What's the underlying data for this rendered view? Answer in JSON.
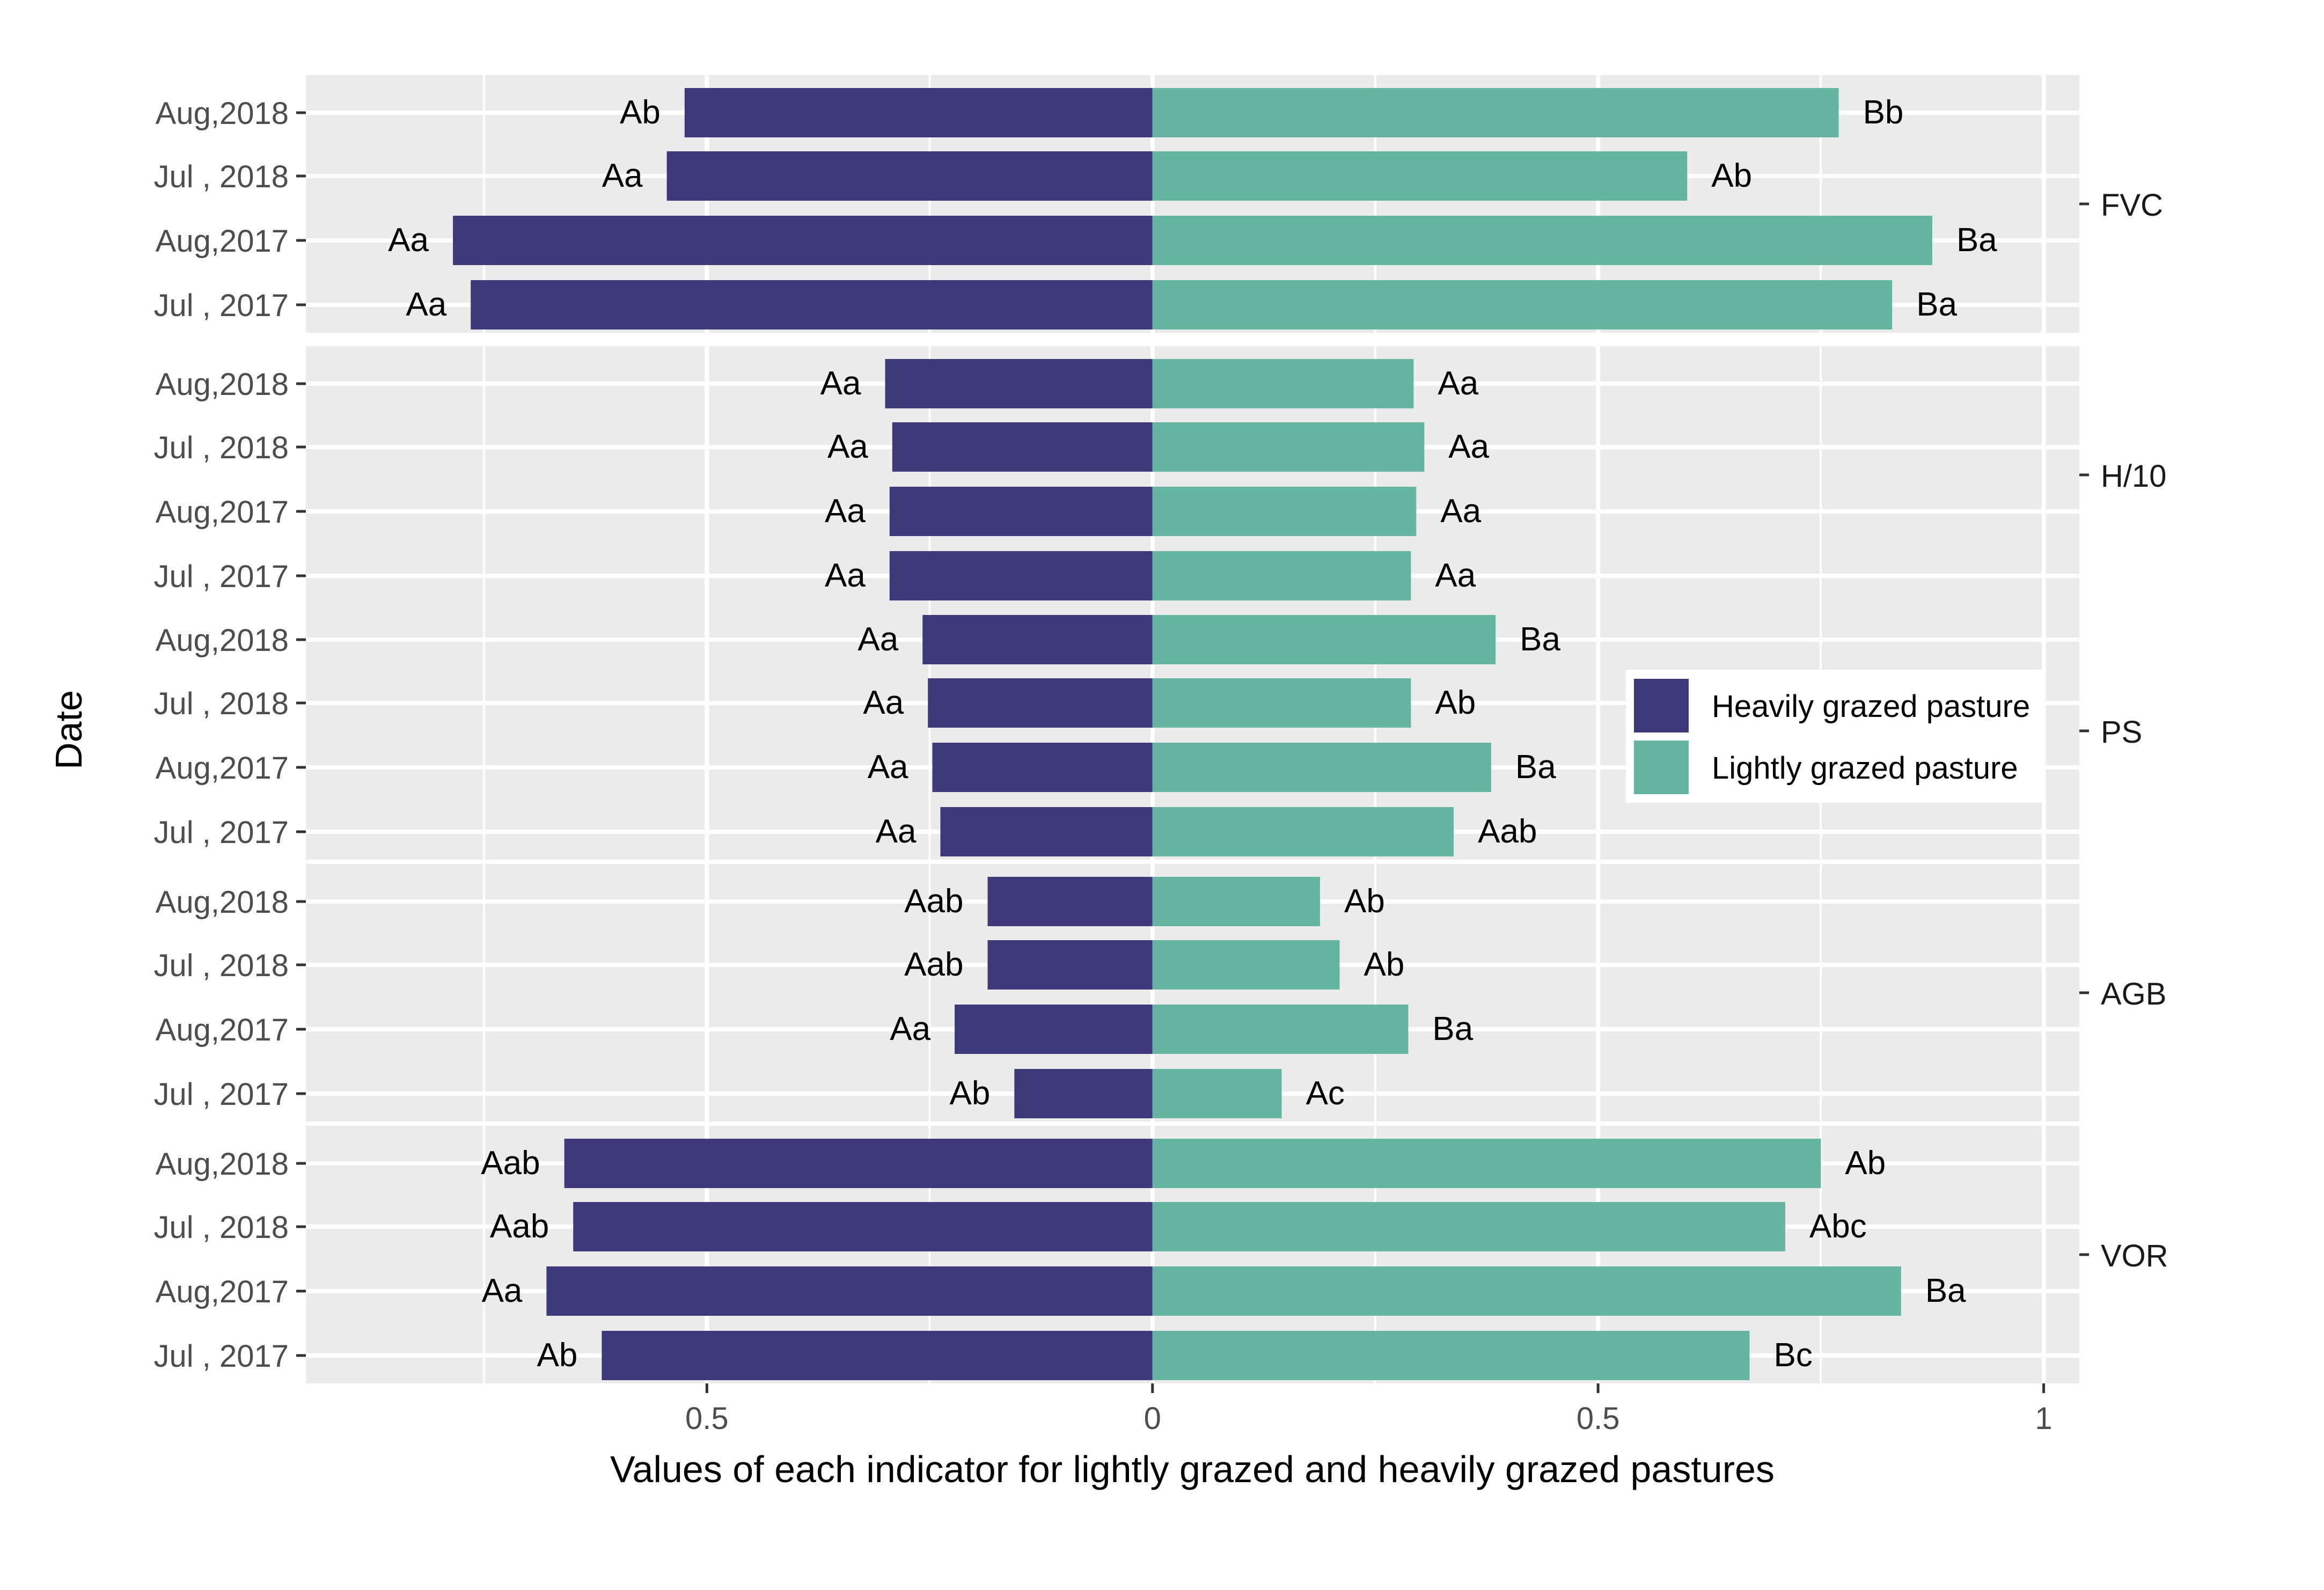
{
  "chart_data": {
    "type": "bar",
    "orientation": "horizontal-diverging",
    "ylabel": "Date",
    "xlabel": "Values of each indicator for lightly grazed and heavily grazed pastures",
    "x_tick_labels": [
      {
        "value": -0.5,
        "label": "0.5"
      },
      {
        "value": 0,
        "label": "0"
      },
      {
        "value": 0.5,
        "label": "0.5"
      },
      {
        "value": 1,
        "label": "1"
      }
    ],
    "xlim": [
      -0.95,
      1.04
    ],
    "grid": true,
    "legend": {
      "placement": "right-middle",
      "entries": [
        {
          "name": "Heavily grazed pasture",
          "color": "#3d3a7a"
        },
        {
          "name": "Lightly grazed pasture",
          "color": "#66b4a2"
        }
      ]
    },
    "categories": [
      "Aug,2018",
      "Jul , 2018",
      "Aug,2017",
      "Jul , 2017"
    ],
    "panels": [
      {
        "name": "FVC",
        "heavy": [
          -0.525,
          -0.545,
          -0.785,
          -0.765
        ],
        "light": [
          0.77,
          0.6,
          0.875,
          0.83
        ],
        "heavy_labels": [
          "Ab",
          "Aa",
          "Aa",
          "Aa"
        ],
        "light_labels": [
          "Bb",
          "Ab",
          "Ba",
          "Ba"
        ]
      },
      {
        "name": "H/10",
        "heavy": [
          -0.3,
          -0.292,
          -0.295,
          -0.295
        ],
        "light": [
          0.293,
          0.305,
          0.296,
          0.29
        ],
        "heavy_labels": [
          "Aa",
          "Aa",
          "Aa",
          "Aa"
        ],
        "light_labels": [
          "Aa",
          "Aa",
          "Aa",
          "Aa"
        ]
      },
      {
        "name": "PS",
        "heavy": [
          -0.258,
          -0.252,
          -0.247,
          -0.238
        ],
        "light": [
          0.385,
          0.29,
          0.38,
          0.338
        ],
        "heavy_labels": [
          "Aa",
          "Aa",
          "Aa",
          "Aa"
        ],
        "light_labels": [
          "Ba",
          "Ab",
          "Ba",
          "Aab"
        ]
      },
      {
        "name": "AGB",
        "heavy": [
          -0.185,
          -0.185,
          -0.222,
          -0.155
        ],
        "light": [
          0.188,
          0.21,
          0.287,
          0.145
        ],
        "heavy_labels": [
          "Aab",
          "Aab",
          "Aa",
          "Ab"
        ],
        "light_labels": [
          "Ab",
          "Ab",
          "Ba",
          "Ac"
        ]
      },
      {
        "name": "VOR",
        "heavy": [
          -0.66,
          -0.65,
          -0.68,
          -0.618
        ],
        "light": [
          0.75,
          0.71,
          0.84,
          0.67
        ],
        "heavy_labels": [
          "Aab",
          "Aab",
          "Aa",
          "Ab"
        ],
        "light_labels": [
          "Ab",
          "Abc",
          "Ba",
          "Bc"
        ]
      }
    ]
  }
}
